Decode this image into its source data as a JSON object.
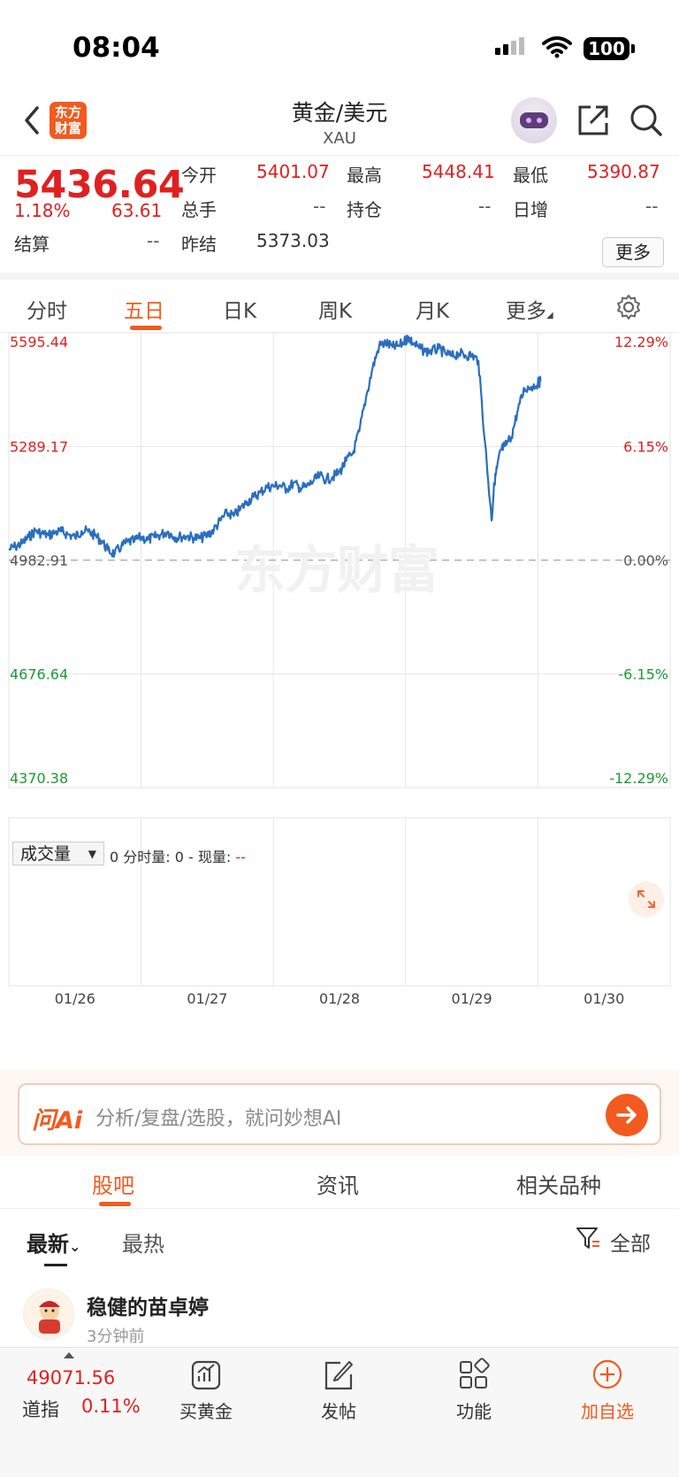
{
  "status_bar": {
    "time": "08:04",
    "battery": "100"
  },
  "nav": {
    "title": "黄金/美元",
    "code": "XAU",
    "logo_text": "东方\n财富"
  },
  "quote": {
    "price": "5436.64",
    "change_pct": "1.18%",
    "change": "63.61",
    "open_label": "今开",
    "open": "5401.07",
    "high_label": "最高",
    "high": "5448.41",
    "low_label": "最低",
    "low": "5390.87",
    "volume_label": "总手",
    "volume": "--",
    "position_label": "持仓",
    "position": "--",
    "daily_inc_label": "日增",
    "daily_inc": "--",
    "settle_label": "结算",
    "settle": "--",
    "prev_settle_label": "昨结",
    "prev_settle": "5373.03",
    "more_button": "更多"
  },
  "kline_tabs": {
    "items": [
      "分时",
      "五日",
      "日K",
      "周K",
      "月K",
      "更多"
    ],
    "active_index": 1
  },
  "chart_data": {
    "type": "line",
    "title": "",
    "x_labels": [
      "01/26",
      "01/27",
      "01/28",
      "01/29",
      "01/30"
    ],
    "y_ticks_left": [
      "5595.44",
      "5289.17",
      "4982.91",
      "4676.64",
      "4370.38"
    ],
    "y_ticks_right": [
      "12.29%",
      "6.15%",
      "0.00%",
      "-6.15%",
      "-12.29%"
    ],
    "reference_price": 4982.91,
    "ylim": [
      4370.38,
      5595.44
    ],
    "series": [
      {
        "color": "#2a6ebf",
        "x": [
          0,
          0.05,
          0.1,
          0.15,
          0.2,
          0.25,
          0.3,
          0.35,
          0.4,
          0.45,
          0.5,
          0.55,
          0.6,
          0.65,
          0.7,
          0.75,
          0.8,
          0.85,
          0.9,
          0.95,
          1.0,
          1.05,
          1.1,
          1.15,
          1.2,
          1.25,
          1.3,
          1.35,
          1.4,
          1.45,
          1.5,
          1.55,
          1.6,
          1.65,
          1.7,
          1.75,
          1.8,
          1.85,
          1.9,
          1.95,
          2.0,
          2.05,
          2.1,
          2.15,
          2.2,
          2.25,
          2.3,
          2.35,
          2.4,
          2.45,
          2.5,
          2.55,
          2.6,
          2.65,
          2.7,
          2.75,
          2.8,
          2.85,
          2.9,
          2.95,
          3.0,
          3.02,
          3.05,
          3.1,
          3.15,
          3.2,
          3.25,
          3.3,
          3.35,
          3.4,
          3.45,
          3.5,
          3.55,
          3.6,
          3.65,
          3.67,
          3.69,
          3.72,
          3.75,
          3.8,
          3.85,
          3.9,
          3.95,
          4.0,
          4.02
        ],
        "values": [
          5011,
          5020,
          5028,
          5045,
          5062,
          5055,
          5050,
          5058,
          5060,
          5052,
          5045,
          5062,
          5060,
          5050,
          5035,
          5010,
          5000,
          5020,
          5032,
          5035,
          5045,
          5038,
          5045,
          5052,
          5060,
          5045,
          5046,
          5048,
          5043,
          5042,
          5050,
          5065,
          5090,
          5110,
          5102,
          5120,
          5140,
          5153,
          5165,
          5180,
          5182,
          5185,
          5175,
          5190,
          5178,
          5180,
          5195,
          5210,
          5200,
          5208,
          5220,
          5250,
          5270,
          5330,
          5420,
          5500,
          5560,
          5568,
          5557,
          5560,
          5575,
          5585,
          5569,
          5555,
          5545,
          5547,
          5552,
          5540,
          5532,
          5540,
          5535,
          5535,
          5520,
          5300,
          5090,
          5190,
          5230,
          5280,
          5290,
          5315,
          5390,
          5445,
          5450,
          5460,
          5465
        ]
      }
    ]
  },
  "volume_panel": {
    "selector": "成交量",
    "info": "0 分时量: 0 - 现量:",
    "current": "--"
  },
  "watermark": "东方财富",
  "ask_ai": {
    "logo": "问Ai",
    "placeholder": "分析/复盘/选股，就问妙想AI"
  },
  "content_tabs": {
    "items": [
      "股吧",
      "资讯",
      "相关品种"
    ],
    "active_index": 0
  },
  "sort": {
    "latest": "最新",
    "hot": "最热",
    "all": "全部"
  },
  "post": {
    "author": "稳健的苗卓婷",
    "time": "3分钟前"
  },
  "bottom_bar": {
    "index_value": "49071.56",
    "index_name": "道指",
    "index_change": "0.11%",
    "items": [
      "买黄金",
      "发帖",
      "功能",
      "加自选"
    ]
  },
  "colors": {
    "accent": "#f25a1f",
    "up": "#e02020",
    "down": "#1a9a32",
    "line": "#2a6ebf"
  }
}
